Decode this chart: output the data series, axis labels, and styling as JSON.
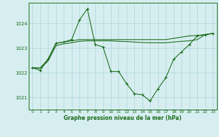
{
  "title": "Graphe pression niveau de la mer (hPa)",
  "background_color": "#d6eef0",
  "grid_color": "#aad4d8",
  "line_color": "#1a6b1a",
  "xlim": [
    -0.5,
    23.5
  ],
  "ylim": [
    1020.5,
    1024.85
  ],
  "yticks": [
    1021,
    1022,
    1023,
    1024
  ],
  "xticks": [
    0,
    1,
    2,
    3,
    4,
    5,
    6,
    7,
    8,
    9,
    10,
    11,
    12,
    13,
    14,
    15,
    16,
    17,
    18,
    19,
    20,
    21,
    22,
    23
  ],
  "series1_x": [
    0,
    1,
    2,
    3,
    4,
    5,
    6,
    7,
    8,
    9,
    10,
    11,
    12,
    13,
    14,
    15,
    16,
    17,
    18,
    19,
    20,
    21,
    22,
    23
  ],
  "series1_y": [
    1022.2,
    1022.1,
    1022.55,
    1023.2,
    1023.25,
    1023.35,
    1024.15,
    1024.6,
    1023.15,
    1023.05,
    1022.05,
    1022.05,
    1021.55,
    1021.15,
    1021.1,
    1020.85,
    1021.35,
    1021.8,
    1022.55,
    1022.85,
    1023.15,
    1023.5,
    1023.55,
    1023.6
  ],
  "series2_x": [
    0,
    1,
    2,
    3,
    4,
    5,
    6,
    7,
    8,
    9,
    10,
    11,
    12,
    13,
    14,
    15,
    16,
    17,
    18,
    19,
    20,
    21,
    22,
    23
  ],
  "series2_y": [
    1022.2,
    1022.2,
    1022.55,
    1023.2,
    1023.25,
    1023.3,
    1023.35,
    1023.35,
    1023.35,
    1023.35,
    1023.35,
    1023.35,
    1023.35,
    1023.35,
    1023.35,
    1023.35,
    1023.35,
    1023.35,
    1023.4,
    1023.45,
    1023.5,
    1023.52,
    1023.55,
    1023.6
  ],
  "series3_x": [
    0,
    1,
    2,
    3,
    4,
    5,
    6,
    7,
    8,
    9,
    10,
    11,
    12,
    13,
    14,
    15,
    16,
    17,
    18,
    19,
    20,
    21,
    22,
    23
  ],
  "series3_y": [
    1022.2,
    1022.18,
    1022.48,
    1023.1,
    1023.18,
    1023.22,
    1023.28,
    1023.3,
    1023.3,
    1023.3,
    1023.3,
    1023.28,
    1023.27,
    1023.25,
    1023.23,
    1023.22,
    1023.22,
    1023.22,
    1023.25,
    1023.28,
    1023.3,
    1023.35,
    1023.55,
    1023.6
  ]
}
